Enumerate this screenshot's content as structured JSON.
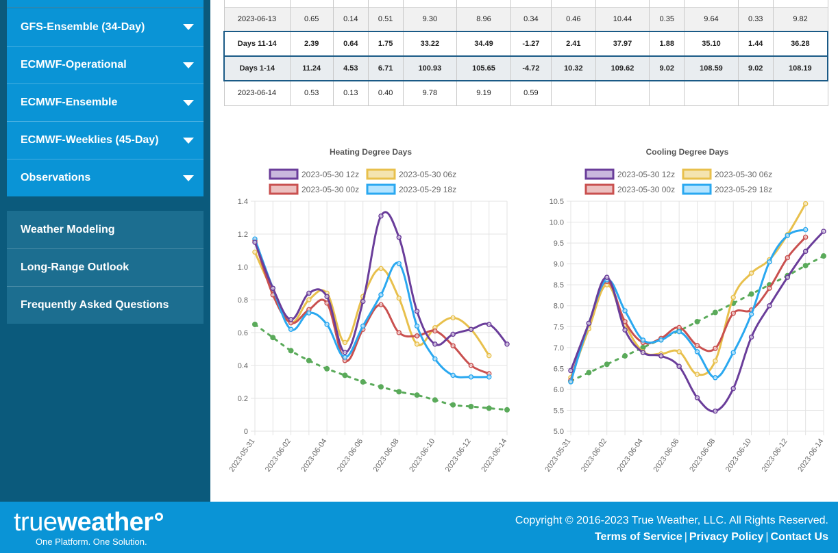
{
  "sidebar": {
    "blue_items": [
      {
        "label": "GFS-Ensemble (34-Day)"
      },
      {
        "label": "ECMWF-Operational"
      },
      {
        "label": "ECMWF-Ensemble"
      },
      {
        "label": "ECMWF-Weeklies (45-Day)"
      },
      {
        "label": "Observations"
      }
    ],
    "gray_items": [
      {
        "label": "Weather Modeling"
      },
      {
        "label": "Long-Range Outlook"
      },
      {
        "label": "Frequently Asked Questions"
      }
    ]
  },
  "table": {
    "rows": [
      {
        "label": "2023-06-13",
        "cells": [
          "0.65",
          "0.14",
          "0.51",
          "9.30",
          "8.96",
          "0.34",
          "0.46",
          "10.44",
          "0.35",
          "9.64",
          "0.33",
          "9.82"
        ]
      },
      {
        "label": "Days 11-14",
        "cells": [
          "2.39",
          "0.64",
          "1.75",
          "33.22",
          "34.49",
          "-1.27",
          "2.41",
          "37.97",
          "1.88",
          "35.10",
          "1.44",
          "36.28"
        ]
      },
      {
        "label": "Days 1-14",
        "cells": [
          "11.24",
          "4.53",
          "6.71",
          "100.93",
          "105.65",
          "-4.72",
          "10.32",
          "109.62",
          "9.02",
          "108.59",
          "9.02",
          "108.19"
        ]
      },
      {
        "label": "2023-06-14",
        "cells": [
          "0.53",
          "0.13",
          "0.40",
          "9.78",
          "9.19",
          "0.59",
          "",
          "",
          "",
          "",
          "",
          ""
        ]
      }
    ]
  },
  "legend": {
    "items": [
      {
        "label": "2023-05-30 12z",
        "color": "#6a3d9a",
        "fill": "#c9b8dd"
      },
      {
        "label": "2023-05-30 06z",
        "color": "#e8c04c",
        "fill": "#f4e4b0"
      },
      {
        "label": "2023-05-30 00z",
        "color": "#c9504f",
        "fill": "#ecc0c0"
      },
      {
        "label": "2023-05-29 18z",
        "color": "#2aa8f0",
        "fill": "#b4e4ff"
      }
    ],
    "trend_color": "#5aaa5a"
  },
  "chart_data": [
    {
      "type": "line",
      "title": "Heating Degree Days",
      "ylim": [
        0,
        1.4
      ],
      "yticks": [
        "0",
        "0.2",
        "0.4",
        "0.6",
        "0.8",
        "1.0",
        "1.2",
        "1.4"
      ],
      "xticks": [
        "2023-05-31",
        "2023-06-02",
        "2023-06-04",
        "2023-06-06",
        "2023-06-08",
        "2023-06-10",
        "2023-06-12",
        "2023-06-14"
      ],
      "grid": true,
      "legend_position": "top",
      "series": [
        {
          "name": "2023-05-30 12z",
          "values": [
            1.15,
            0.87,
            0.68,
            0.84,
            0.82,
            0.48,
            0.79,
            1.31,
            1.18,
            0.73,
            0.53,
            0.59,
            0.62,
            0.65,
            0.53
          ]
        },
        {
          "name": "2023-05-30 06z",
          "values": [
            1.09,
            0.85,
            0.66,
            0.8,
            0.84,
            0.54,
            0.82,
            0.99,
            0.81,
            0.53,
            0.63,
            0.69,
            0.62,
            0.46,
            null
          ]
        },
        {
          "name": "2023-05-30 00z",
          "values": [
            1.16,
            0.83,
            0.66,
            0.74,
            0.78,
            0.43,
            0.62,
            0.77,
            0.6,
            0.58,
            0.61,
            0.52,
            0.4,
            0.35,
            null
          ]
        },
        {
          "name": "2023-05-29 18z",
          "values": [
            1.17,
            0.87,
            0.62,
            0.72,
            0.65,
            0.45,
            0.64,
            0.83,
            1.02,
            0.64,
            0.44,
            0.34,
            0.33,
            0.33,
            null
          ]
        },
        {
          "name": "",
          "dashed": true,
          "values": [
            0.65,
            0.57,
            0.49,
            0.43,
            0.38,
            0.34,
            0.3,
            0.27,
            0.24,
            0.22,
            0.19,
            0.16,
            0.15,
            0.14,
            0.13
          ]
        }
      ]
    },
    {
      "type": "line",
      "title": "Cooling Degree Days",
      "ylim": [
        5.0,
        10.5
      ],
      "yticks": [
        "5.0",
        "5.5",
        "6.0",
        "6.5",
        "7.0",
        "7.5",
        "8.0",
        "8.5",
        "9.0",
        "9.5",
        "10.0",
        "10.5"
      ],
      "xticks": [
        "2023-05-31",
        "2023-06-02",
        "2023-06-04",
        "2023-06-06",
        "2023-06-08",
        "2023-06-10",
        "2023-06-12",
        "2023-06-14"
      ],
      "grid": true,
      "legend_position": "top",
      "series": [
        {
          "name": "2023-05-30 12z",
          "values": [
            6.45,
            7.58,
            8.68,
            7.42,
            6.88,
            6.8,
            6.55,
            5.8,
            5.48,
            6.02,
            7.25,
            8.0,
            8.68,
            9.3,
            9.78
          ]
        },
        {
          "name": "2023-05-30 06z",
          "values": [
            6.28,
            7.45,
            8.5,
            7.55,
            6.9,
            6.85,
            6.9,
            6.36,
            6.68,
            8.2,
            8.78,
            9.1,
            9.7,
            10.44,
            null
          ]
        },
        {
          "name": "2023-05-30 00z",
          "values": [
            6.22,
            7.58,
            8.58,
            7.62,
            7.12,
            7.22,
            7.48,
            7.05,
            6.98,
            7.82,
            7.9,
            8.42,
            9.15,
            9.64,
            null
          ]
        },
        {
          "name": "2023-05-29 18z",
          "values": [
            6.18,
            7.58,
            8.62,
            7.88,
            7.18,
            7.18,
            7.38,
            6.9,
            6.28,
            6.88,
            7.8,
            9.05,
            9.68,
            9.82,
            null
          ]
        },
        {
          "name": "",
          "dashed": true,
          "values": [
            6.2,
            6.4,
            6.6,
            6.8,
            7.0,
            7.2,
            7.4,
            7.62,
            7.84,
            8.06,
            8.28,
            8.5,
            8.72,
            8.96,
            9.19
          ]
        }
      ]
    }
  ],
  "footer": {
    "logo_true": "true",
    "logo_weather": "weather",
    "tagline": "One Platform. One Solution.",
    "copyright": "Copyright © 2016-2023 True Weather, LLC. All Rights Reserved.",
    "links": [
      {
        "label": "Terms of Service"
      },
      {
        "label": "Privacy Policy"
      },
      {
        "label": "Contact Us"
      }
    ],
    "separator": "|"
  }
}
